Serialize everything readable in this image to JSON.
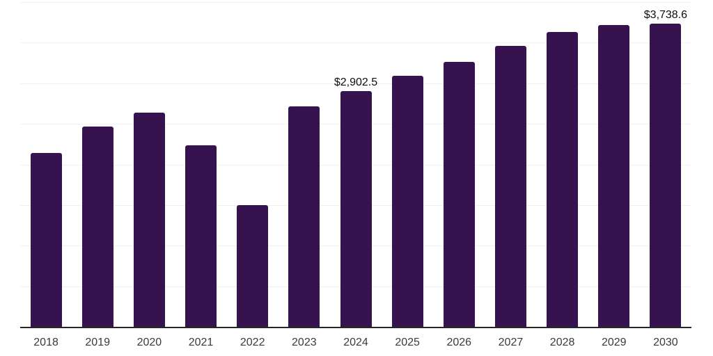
{
  "chart_data": {
    "type": "bar",
    "title": "",
    "xlabel": "",
    "ylabel": "",
    "categories": [
      "2018",
      "2019",
      "2020",
      "2021",
      "2022",
      "2023",
      "2024",
      "2025",
      "2026",
      "2027",
      "2028",
      "2029",
      "2030"
    ],
    "values": [
      2141.4,
      2464.1,
      2635.4,
      2235.5,
      1503.2,
      2715.1,
      2902.5,
      3094.5,
      3265.8,
      3457.6,
      3628.9,
      3720.0,
      3738.6
    ],
    "data_labels": [
      {
        "category": "2024",
        "index": 6,
        "text": "$2,902.5"
      },
      {
        "category": "2030",
        "index": 12,
        "text": "$3,738.6"
      }
    ],
    "ylim": [
      0,
      4000
    ],
    "gridline_step": 500,
    "grid": true,
    "legend_position": "none",
    "y_axis_ticks_visible": false
  },
  "colors": {
    "bar": "#36124F",
    "gridline": "#F0F0F0",
    "axis_line": "#262626",
    "tick_label": "#3A3A3A",
    "data_label": "#0D0D0D",
    "background": "#FFFFFF"
  }
}
